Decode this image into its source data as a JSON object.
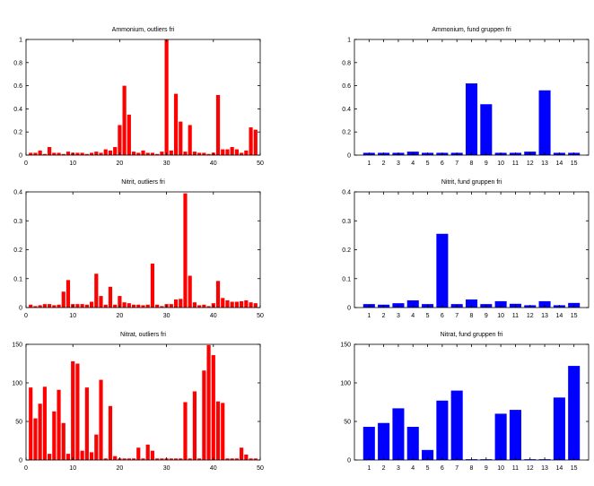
{
  "chart_data": [
    {
      "type": "bar",
      "title": "Ammonium, outliers fri",
      "xlim": [
        0,
        50
      ],
      "ylim": [
        0,
        1
      ],
      "xticks": [
        0,
        10,
        20,
        30,
        40,
        50
      ],
      "yticks": [
        0,
        0.2,
        0.4,
        0.6,
        0.8,
        1
      ],
      "ytick_labels": [
        "0",
        "0.2",
        "0.4",
        "0.6",
        "0.8",
        "1"
      ],
      "color": "#ff0000",
      "x": [
        1,
        2,
        3,
        4,
        5,
        6,
        7,
        8,
        9,
        10,
        11,
        12,
        13,
        14,
        15,
        16,
        17,
        18,
        19,
        20,
        21,
        22,
        23,
        24,
        25,
        26,
        27,
        28,
        29,
        30,
        31,
        32,
        33,
        34,
        35,
        36,
        37,
        38,
        39,
        40,
        41,
        42,
        43,
        44,
        45,
        46,
        47,
        48,
        49
      ],
      "values": [
        0.02,
        0.02,
        0.04,
        0.01,
        0.07,
        0.02,
        0.02,
        0.01,
        0.03,
        0.02,
        0.02,
        0.02,
        0.01,
        0.02,
        0.03,
        0.02,
        0.05,
        0.04,
        0.07,
        0.26,
        0.6,
        0.35,
        0.03,
        0.02,
        0.04,
        0.02,
        0.02,
        0.01,
        0.03,
        1.0,
        0.04,
        0.53,
        0.29,
        0.03,
        0.26,
        0.03,
        0.02,
        0.02,
        0.01,
        0.02,
        0.52,
        0.05,
        0.05,
        0.07,
        0.05,
        0.02,
        0.04,
        0.24,
        0.22
      ]
    },
    {
      "type": "bar",
      "title": "Ammonium, fund gruppen fri",
      "xlim": [
        0,
        16
      ],
      "ylim": [
        0,
        1
      ],
      "xticks": [
        1,
        2,
        3,
        4,
        5,
        6,
        7,
        8,
        9,
        10,
        11,
        12,
        13,
        14,
        15
      ],
      "yticks": [
        0,
        0.2,
        0.4,
        0.6,
        0.8,
        1
      ],
      "ytick_labels": [
        "0",
        "0.2",
        "0.4",
        "0.6",
        "0.8",
        "1"
      ],
      "color": "#0000ff",
      "x": [
        1,
        2,
        3,
        4,
        5,
        6,
        7,
        8,
        9,
        10,
        11,
        12,
        13,
        14,
        15
      ],
      "values": [
        0.02,
        0.02,
        0.02,
        0.03,
        0.02,
        0.02,
        0.02,
        0.62,
        0.44,
        0.02,
        0.02,
        0.03,
        0.56,
        0.02,
        0.02
      ]
    },
    {
      "type": "bar",
      "title": "Nitrit, outliers fri",
      "xlim": [
        0,
        50
      ],
      "ylim": [
        0,
        0.4
      ],
      "xticks": [
        0,
        10,
        20,
        30,
        40,
        50
      ],
      "yticks": [
        0,
        0.1,
        0.2,
        0.3,
        0.4
      ],
      "ytick_labels": [
        "0",
        "0.1",
        "0.2",
        "0.3",
        "0.4"
      ],
      "color": "#ff0000",
      "x": [
        1,
        2,
        3,
        4,
        5,
        6,
        7,
        8,
        9,
        10,
        11,
        12,
        13,
        14,
        15,
        16,
        17,
        18,
        19,
        20,
        21,
        22,
        23,
        24,
        25,
        26,
        27,
        28,
        29,
        30,
        31,
        32,
        33,
        34,
        35,
        36,
        37,
        38,
        39,
        40,
        41,
        42,
        43,
        44,
        45,
        46,
        47,
        48,
        49
      ],
      "values": [
        0.01,
        0.005,
        0.008,
        0.012,
        0.012,
        0.008,
        0.01,
        0.055,
        0.095,
        0.012,
        0.012,
        0.012,
        0.01,
        0.02,
        0.117,
        0.04,
        0.01,
        0.072,
        0.01,
        0.04,
        0.018,
        0.015,
        0.01,
        0.01,
        0.008,
        0.01,
        0.152,
        0.01,
        0.005,
        0.012,
        0.012,
        0.028,
        0.03,
        0.395,
        0.11,
        0.018,
        0.008,
        0.01,
        0.005,
        0.015,
        0.092,
        0.033,
        0.025,
        0.02,
        0.02,
        0.022,
        0.025,
        0.018,
        0.015
      ]
    },
    {
      "type": "bar",
      "title": "Nitrit, fund gruppen fri",
      "xlim": [
        0,
        16
      ],
      "ylim": [
        0,
        0.4
      ],
      "xticks": [
        1,
        2,
        3,
        4,
        5,
        6,
        7,
        8,
        9,
        10,
        11,
        12,
        13,
        14,
        15
      ],
      "yticks": [
        0,
        0.1,
        0.2,
        0.3,
        0.4
      ],
      "ytick_labels": [
        "0",
        "0.1",
        "0.2",
        "0.3",
        "0.4"
      ],
      "color": "#0000ff",
      "x": [
        1,
        2,
        3,
        4,
        5,
        6,
        7,
        8,
        9,
        10,
        11,
        12,
        13,
        14,
        15
      ],
      "values": [
        0.012,
        0.01,
        0.015,
        0.025,
        0.012,
        0.255,
        0.012,
        0.028,
        0.012,
        0.022,
        0.013,
        0.008,
        0.022,
        0.008,
        0.016
      ]
    },
    {
      "type": "bar",
      "title": "Nitrat, outliers fri",
      "xlim": [
        0,
        50
      ],
      "ylim": [
        0,
        150
      ],
      "xticks": [
        0,
        10,
        20,
        30,
        40,
        50
      ],
      "yticks": [
        0,
        50,
        100,
        150
      ],
      "ytick_labels": [
        "0",
        "50",
        "100",
        "150"
      ],
      "color": "#ff0000",
      "x": [
        1,
        2,
        3,
        4,
        5,
        6,
        7,
        8,
        9,
        10,
        11,
        12,
        13,
        14,
        15,
        16,
        17,
        18,
        19,
        20,
        21,
        22,
        23,
        24,
        25,
        26,
        27,
        28,
        29,
        30,
        31,
        32,
        33,
        34,
        35,
        36,
        37,
        38,
        39,
        40,
        41,
        42,
        43,
        44,
        45,
        46,
        47,
        48,
        49
      ],
      "values": [
        94,
        54,
        73,
        95,
        8,
        63,
        91,
        48,
        8,
        128,
        125,
        12,
        94,
        10,
        33,
        104,
        2,
        70,
        5,
        2,
        2,
        2,
        2,
        16,
        2,
        20,
        12,
        2,
        2,
        2,
        2,
        2,
        2,
        75,
        2,
        89,
        2,
        116,
        149,
        136,
        76,
        74,
        2,
        2,
        2,
        16,
        7,
        2,
        2
      ]
    },
    {
      "type": "bar",
      "title": "Nitrat, fund gruppen fri",
      "xlim": [
        0,
        16
      ],
      "ylim": [
        0,
        150
      ],
      "xticks": [
        1,
        2,
        3,
        4,
        5,
        6,
        7,
        8,
        9,
        10,
        11,
        12,
        13,
        14,
        15
      ],
      "yticks": [
        0,
        50,
        100,
        150
      ],
      "ytick_labels": [
        "0",
        "50",
        "100",
        "150"
      ],
      "color": "#0000ff",
      "x": [
        1,
        2,
        3,
        4,
        5,
        6,
        7,
        8,
        9,
        10,
        11,
        12,
        13,
        14,
        15
      ],
      "values": [
        43,
        48,
        67,
        43,
        13,
        77,
        90,
        1,
        1,
        60,
        65,
        1,
        1,
        81,
        122
      ]
    }
  ]
}
